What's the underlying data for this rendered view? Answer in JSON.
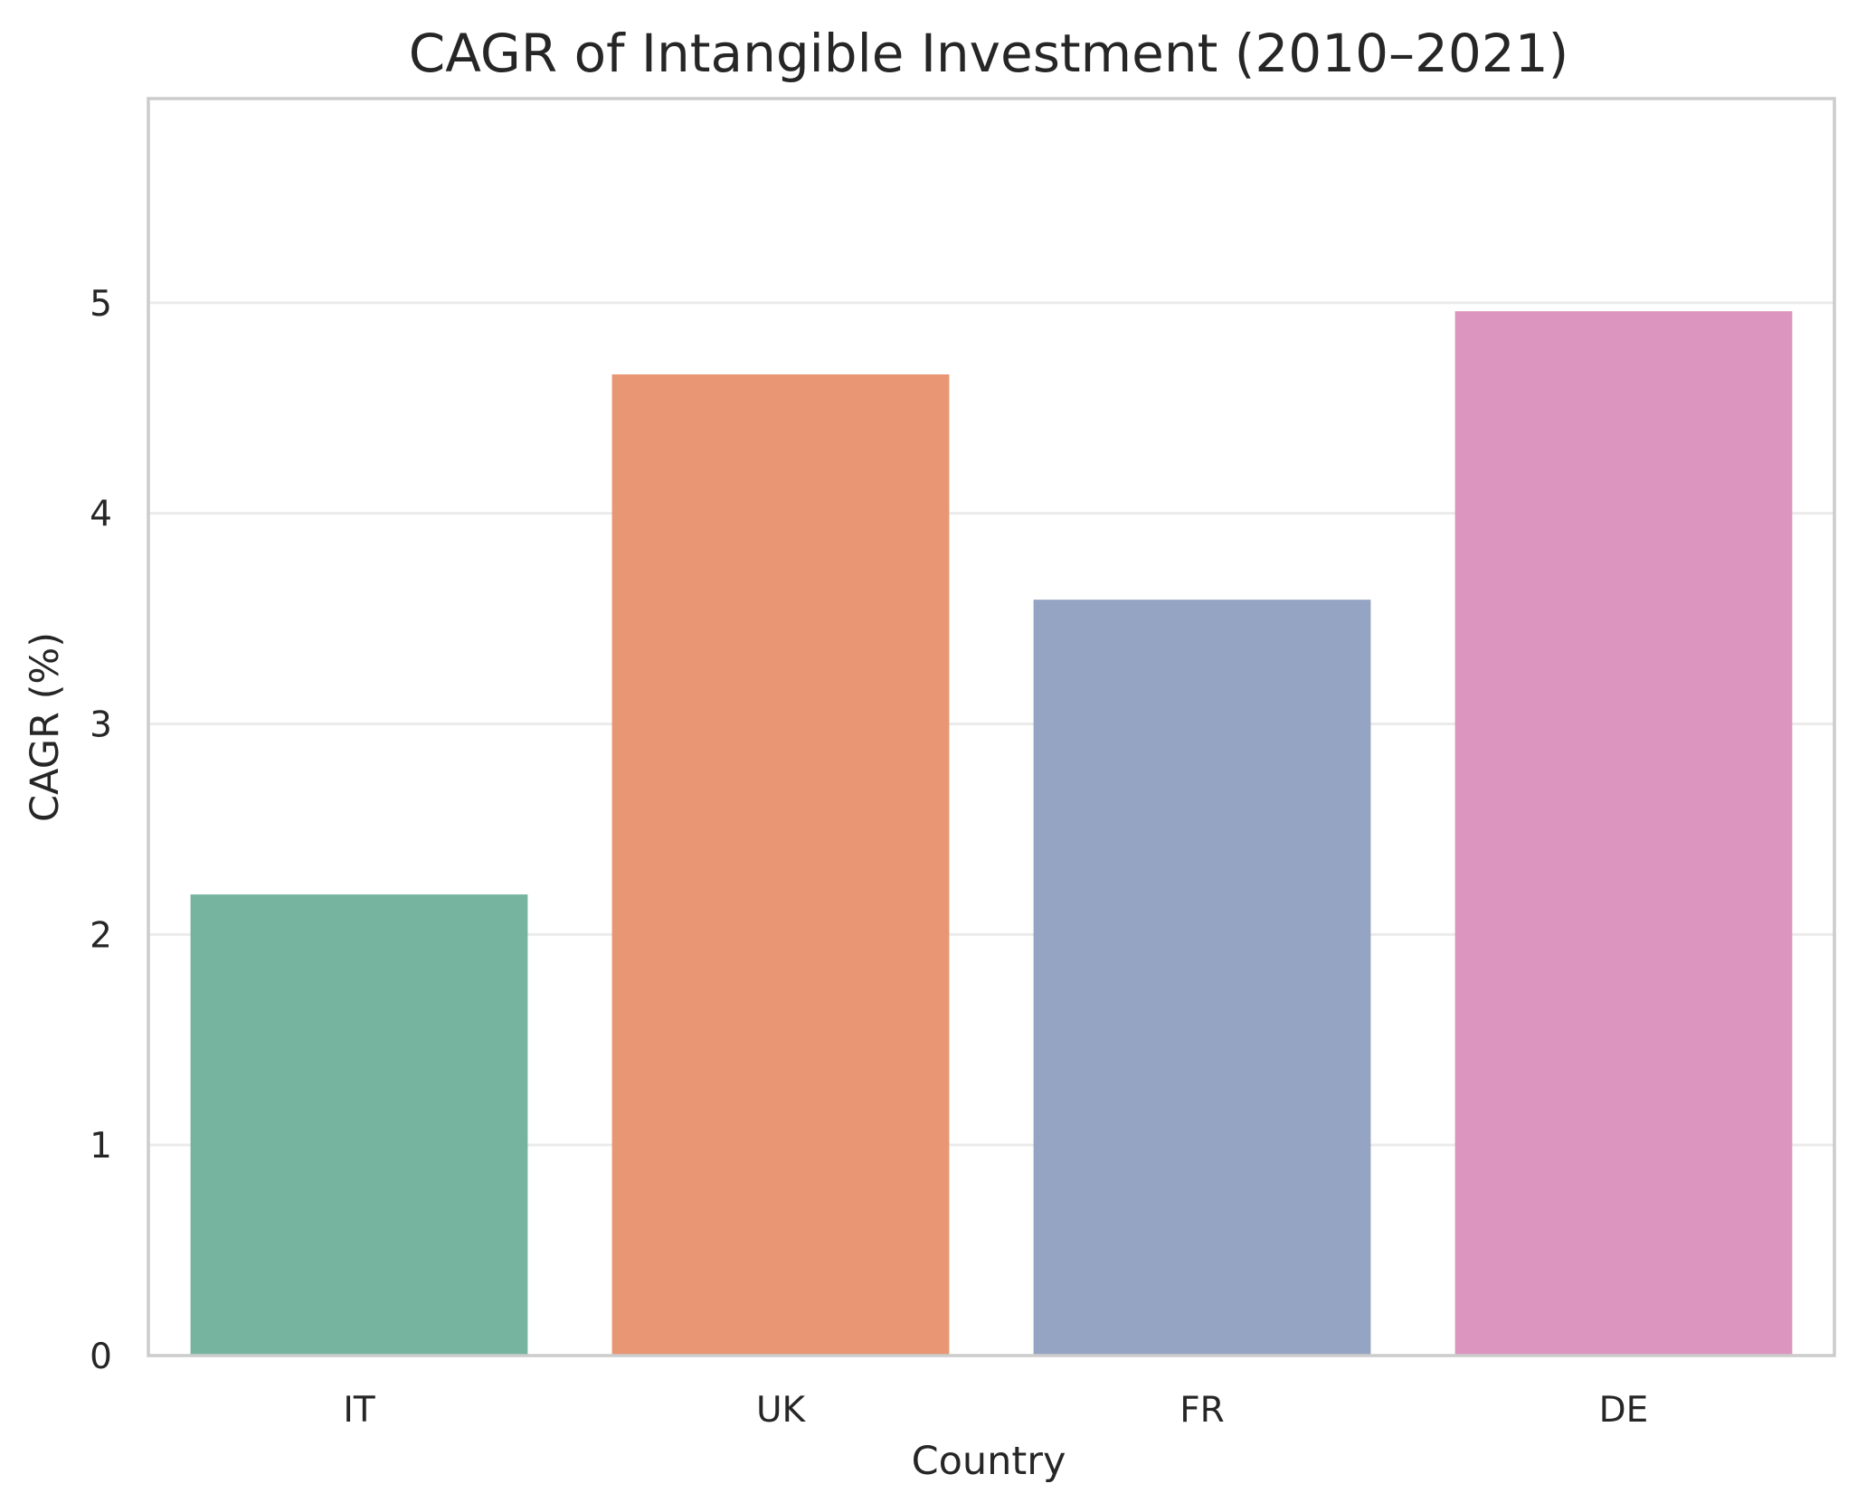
{
  "chart_data": {
    "type": "bar",
    "title": "CAGR of Intangible Investment (2010–2021)",
    "xlabel": "Country",
    "ylabel": "CAGR (%)",
    "categories": [
      "IT",
      "UK",
      "FR",
      "DE"
    ],
    "values": [
      2.19,
      4.66,
      3.59,
      4.96
    ],
    "colors": [
      "#76b4a0",
      "#e89674",
      "#95a4c2",
      "#dc95bf"
    ],
    "yticks": [
      "0",
      "1",
      "2",
      "3",
      "4",
      "5"
    ],
    "ylim": [
      0,
      5.97
    ],
    "grid": "horizontal",
    "legend": "none"
  }
}
